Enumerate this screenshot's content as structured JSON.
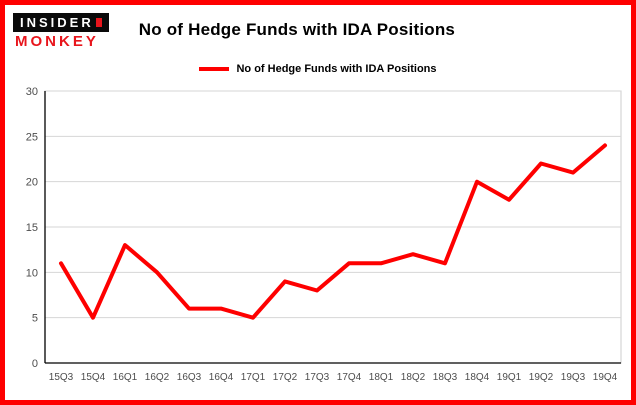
{
  "branding": {
    "logo_line1": "INSIDER",
    "logo_line2": "MONKEY"
  },
  "header": {
    "title": "No of Hedge Funds with IDA Positions"
  },
  "legend": {
    "label": "No of Hedge Funds with IDA Positions"
  },
  "colors": {
    "line": "#fe0000",
    "border": "#fe0000",
    "logo_red": "#e8151c",
    "gridline": "#d6d6d6",
    "axis": "#000000",
    "tick_label": "#4d4d4d"
  },
  "chart_data": {
    "type": "line",
    "title": "No of Hedge Funds with IDA Positions",
    "categories": [
      "15Q3",
      "15Q4",
      "16Q1",
      "16Q2",
      "16Q3",
      "16Q4",
      "17Q1",
      "17Q2",
      "17Q3",
      "17Q4",
      "18Q1",
      "18Q2",
      "18Q3",
      "18Q4",
      "19Q1",
      "19Q2",
      "19Q3",
      "19Q4"
    ],
    "series": [
      {
        "name": "No of Hedge Funds with IDA Positions",
        "values": [
          11,
          5,
          13,
          10,
          6,
          6,
          5,
          9,
          8,
          11,
          11,
          12,
          11,
          20,
          18,
          22,
          21,
          24
        ]
      }
    ],
    "xlabel": "",
    "ylabel": "",
    "ylim": [
      0,
      30
    ],
    "yticks": [
      0,
      5,
      10,
      15,
      20,
      25,
      30
    ],
    "grid": true,
    "legend_position": "top-center"
  }
}
